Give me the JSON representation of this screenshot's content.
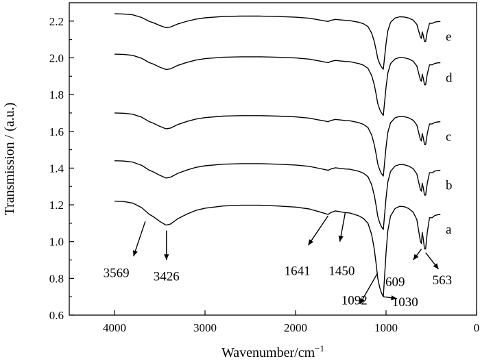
{
  "chart_data": {
    "type": "line",
    "xlabel": "Wavenumber/cm",
    "xlabel_superscript": "−1",
    "ylabel": "Transmission / (a.u.)",
    "xlim": [
      4500,
      0
    ],
    "ylim": [
      0.6,
      2.3
    ],
    "x_ticks": [
      4000,
      3000,
      2000,
      1000,
      0
    ],
    "y_ticks": [
      0.6,
      0.8,
      1.0,
      1.2,
      1.4,
      1.6,
      1.8,
      2.0,
      2.2
    ],
    "x_tick_labels": [
      "4000",
      "3000",
      "2000",
      "1000",
      "0"
    ],
    "y_tick_labels": [
      "0.6",
      "0.8",
      "1.0",
      "1.2",
      "1.4",
      "1.6",
      "1.8",
      "2.0",
      "2.2"
    ],
    "grid": false,
    "legend": "none",
    "series": [
      {
        "label": "a",
        "offset": 1.22,
        "scale": 1.0
      },
      {
        "label": "b",
        "offset": 1.44,
        "scale": 0.72
      },
      {
        "label": "c",
        "offset": 1.7,
        "scale": 0.66
      },
      {
        "label": "d",
        "offset": 2.02,
        "scale": 0.64
      },
      {
        "label": "e",
        "offset": 2.24,
        "scale": 0.58
      }
    ],
    "base_profile": [
      [
        4000,
        0.0
      ],
      [
        3900,
        -0.002
      ],
      [
        3800,
        -0.01
      ],
      [
        3700,
        -0.035
      ],
      [
        3620,
        -0.07
      ],
      [
        3569,
        -0.085
      ],
      [
        3500,
        -0.11
      ],
      [
        3440,
        -0.128
      ],
      [
        3426,
        -0.13
      ],
      [
        3380,
        -0.124
      ],
      [
        3300,
        -0.095
      ],
      [
        3200,
        -0.07
      ],
      [
        3100,
        -0.05
      ],
      [
        3000,
        -0.038
      ],
      [
        2800,
        -0.026
      ],
      [
        2600,
        -0.022
      ],
      [
        2400,
        -0.022
      ],
      [
        2200,
        -0.026
      ],
      [
        2000,
        -0.032
      ],
      [
        1850,
        -0.042
      ],
      [
        1750,
        -0.056
      ],
      [
        1680,
        -0.066
      ],
      [
        1641,
        -0.072
      ],
      [
        1610,
        -0.062
      ],
      [
        1560,
        -0.053
      ],
      [
        1500,
        -0.058
      ],
      [
        1450,
        -0.062
      ],
      [
        1400,
        -0.064
      ],
      [
        1350,
        -0.072
      ],
      [
        1300,
        -0.08
      ],
      [
        1250,
        -0.094
      ],
      [
        1200,
        -0.12
      ],
      [
        1160,
        -0.18
      ],
      [
        1130,
        -0.26
      ],
      [
        1110,
        -0.34
      ],
      [
        1092,
        -0.42
      ],
      [
        1070,
        -0.47
      ],
      [
        1050,
        -0.5
      ],
      [
        1040,
        -0.51
      ],
      [
        1030,
        -0.52
      ],
      [
        1015,
        -0.4
      ],
      [
        1000,
        -0.28
      ],
      [
        980,
        -0.16
      ],
      [
        950,
        -0.08
      ],
      [
        900,
        -0.04
      ],
      [
        850,
        -0.028
      ],
      [
        800,
        -0.03
      ],
      [
        750,
        -0.04
      ],
      [
        700,
        -0.06
      ],
      [
        660,
        -0.1
      ],
      [
        640,
        -0.16
      ],
      [
        620,
        -0.22
      ],
      [
        609,
        -0.23
      ],
      [
        600,
        -0.17
      ],
      [
        590,
        -0.2
      ],
      [
        575,
        -0.26
      ],
      [
        563,
        -0.26
      ],
      [
        545,
        -0.17
      ],
      [
        520,
        -0.09
      ],
      [
        490,
        -0.09
      ],
      [
        460,
        -0.078
      ],
      [
        430,
        -0.074
      ],
      [
        400,
        -0.072
      ]
    ],
    "annotations": [
      {
        "text": "3569",
        "from": [
          3660,
          1.11
        ],
        "to": [
          3790,
          0.92
        ],
        "tx": 3980,
        "ty": 0.83
      },
      {
        "text": "3426",
        "from": [
          3426,
          1.06
        ],
        "to": [
          3426,
          0.9
        ],
        "tx": 3426,
        "ty": 0.81
      },
      {
        "text": "1641",
        "from": [
          1641,
          1.14
        ],
        "to": [
          1860,
          0.98
        ],
        "tx": 1980,
        "ty": 0.84
      },
      {
        "text": "1450",
        "from": [
          1450,
          1.16
        ],
        "to": [
          1510,
          1.0
        ],
        "tx": 1490,
        "ty": 0.84
      },
      {
        "text": "1092",
        "from": [
          1092,
          0.83
        ],
        "to": [
          1290,
          0.66
        ],
        "tx": 1350,
        "ty": 0.68
      },
      {
        "text": "1030",
        "from": [
          1030,
          0.7
        ],
        "to": [
          880,
          0.69
        ],
        "tx": 790,
        "ty": 0.67
      },
      {
        "text": "609",
        "from": [
          609,
          0.96
        ],
        "to": [
          700,
          0.9
        ],
        "tx": 900,
        "ty": 0.78
      },
      {
        "text": "563",
        "from": [
          563,
          0.94
        ],
        "to": [
          420,
          0.85
        ],
        "tx": 380,
        "ty": 0.79
      }
    ]
  }
}
